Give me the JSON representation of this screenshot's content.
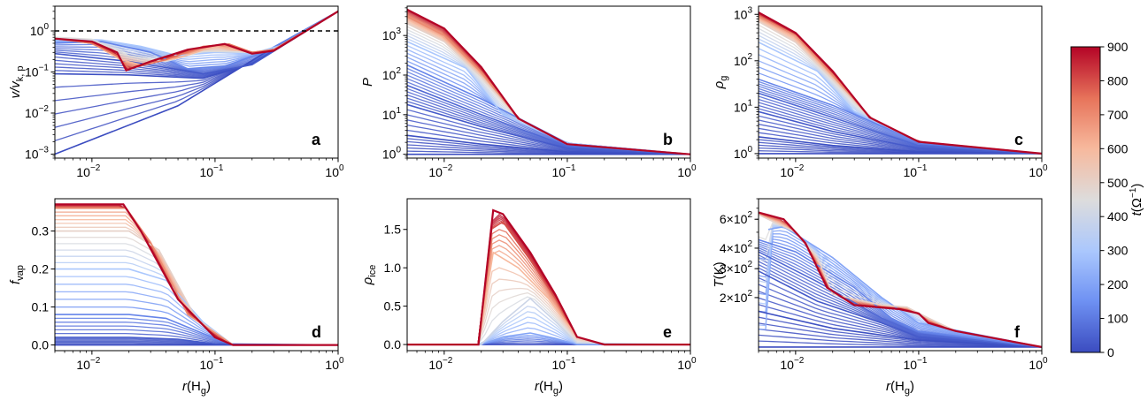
{
  "colorbar": {
    "label_t": "t",
    "label_unit": "(Ω",
    "label_exp": "−1",
    "label_close": ")",
    "range": [
      0,
      900
    ],
    "ticks": [
      "0",
      "100",
      "200",
      "300",
      "400",
      "500",
      "600",
      "700",
      "800",
      "900"
    ],
    "colormap": "coolwarm",
    "cmap_stops": [
      "#3b4cc0",
      "#6f92f3",
      "#aac7fd",
      "#dddcdc",
      "#f7b89c",
      "#e7745b",
      "#b40426"
    ]
  },
  "shared_x": {
    "label_main": "r",
    "label_paren": "(H",
    "label_sub": "g",
    "label_close": ")",
    "scale": "log",
    "range": [
      0.005,
      1
    ],
    "ticks": [
      {
        "value": 0.01,
        "base": "10",
        "exp": "−2"
      },
      {
        "value": 0.1,
        "base": "10",
        "exp": "−1"
      },
      {
        "value": 1,
        "base": "10",
        "exp": "0"
      }
    ]
  },
  "chart_data": [
    {
      "panel": "a",
      "type": "line",
      "yscale": "log",
      "ylim": [
        0.0008,
        4
      ],
      "ylabel_main": "v/v",
      "ylabel_sub": "k, p",
      "yticks": [
        {
          "value": 0.001,
          "base": "10",
          "exp": "−3"
        },
        {
          "value": 0.01,
          "base": "10",
          "exp": "−2"
        },
        {
          "value": 0.1,
          "base": "10",
          "exp": "−1"
        },
        {
          "value": 1,
          "base": "10",
          "exp": "0"
        }
      ],
      "reference_line": {
        "y": 1.0,
        "style": "dashed",
        "color": "#000000"
      },
      "series": [
        {
          "t": 0,
          "x": [
            0.005,
            0.05,
            0.3,
            1
          ],
          "y": [
            0.001,
            0.015,
            0.4,
            3
          ]
        },
        {
          "t": 10,
          "x": [
            0.005,
            0.02,
            0.08,
            0.2,
            1
          ],
          "y": [
            0.09,
            0.085,
            0.07,
            0.16,
            3
          ]
        },
        {
          "t": 30,
          "x": [
            0.005,
            0.02,
            0.08,
            0.2,
            1
          ],
          "y": [
            0.28,
            0.18,
            0.09,
            0.15,
            3
          ]
        },
        {
          "t": 120,
          "x": [
            0.005,
            0.012,
            0.03,
            0.06,
            0.12,
            0.25,
            1
          ],
          "y": [
            0.5,
            0.55,
            0.3,
            0.12,
            0.14,
            0.3,
            3
          ]
        },
        {
          "t": 300,
          "x": [
            0.005,
            0.012,
            0.025,
            0.05,
            0.1,
            0.2,
            0.35,
            1
          ],
          "y": [
            0.65,
            0.6,
            0.42,
            0.25,
            0.3,
            0.28,
            0.45,
            3
          ]
        },
        {
          "t": 450,
          "x": [
            0.005,
            0.01,
            0.02,
            0.04,
            0.08,
            0.2,
            0.3,
            1
          ],
          "y": [
            0.7,
            0.62,
            0.25,
            0.18,
            0.32,
            0.3,
            0.35,
            3
          ]
        },
        {
          "t": 600,
          "x": [
            0.005,
            0.01,
            0.017,
            0.025,
            0.05,
            0.1,
            0.2,
            0.3,
            1
          ],
          "y": [
            0.65,
            0.5,
            0.2,
            0.15,
            0.22,
            0.42,
            0.3,
            0.35,
            3
          ]
        },
        {
          "t": 750,
          "x": [
            0.005,
            0.01,
            0.016,
            0.02,
            0.04,
            0.08,
            0.13,
            0.2,
            0.3,
            1
          ],
          "y": [
            0.65,
            0.5,
            0.25,
            0.12,
            0.2,
            0.42,
            0.48,
            0.3,
            0.35,
            3
          ]
        },
        {
          "t": 900,
          "x": [
            0.005,
            0.01,
            0.016,
            0.019,
            0.03,
            0.06,
            0.12,
            0.2,
            0.3,
            1
          ],
          "y": [
            0.65,
            0.55,
            0.3,
            0.11,
            0.18,
            0.35,
            0.48,
            0.28,
            0.33,
            3
          ]
        }
      ]
    },
    {
      "panel": "b",
      "type": "line",
      "yscale": "log",
      "ylim": [
        0.8,
        5500
      ],
      "ylabel_main": "P",
      "ylabel_sub": "",
      "yticks": [
        {
          "value": 1,
          "base": "10",
          "exp": "0"
        },
        {
          "value": 10,
          "base": "10",
          "exp": "1"
        },
        {
          "value": 100,
          "base": "10",
          "exp": "2"
        },
        {
          "value": 1000,
          "base": "10",
          "exp": "3"
        }
      ],
      "series": [
        {
          "t": 0,
          "x": [
            0.005,
            1
          ],
          "y": [
            1,
            1
          ]
        },
        {
          "t": 10,
          "x": [
            0.005,
            0.02,
            0.1,
            1
          ],
          "y": [
            3,
            1.8,
            1.15,
            1
          ]
        },
        {
          "t": 30,
          "x": [
            0.005,
            0.02,
            0.1,
            1
          ],
          "y": [
            18,
            5,
            1.4,
            1
          ]
        },
        {
          "t": 60,
          "x": [
            0.005,
            0.02,
            0.1,
            1
          ],
          "y": [
            55,
            10,
            1.6,
            1
          ]
        },
        {
          "t": 120,
          "x": [
            0.005,
            0.02,
            0.1,
            1
          ],
          "y": [
            180,
            25,
            1.9,
            1
          ]
        },
        {
          "t": 300,
          "x": [
            0.005,
            0.015,
            0.03,
            0.1,
            1
          ],
          "y": [
            700,
            150,
            10,
            1.9,
            1
          ]
        },
        {
          "t": 500,
          "x": [
            0.005,
            0.01,
            0.02,
            0.04,
            0.1,
            1
          ],
          "y": [
            2000,
            700,
            90,
            8,
            1.8,
            1
          ]
        },
        {
          "t": 700,
          "x": [
            0.005,
            0.01,
            0.02,
            0.04,
            0.1,
            1
          ],
          "y": [
            3000,
            1000,
            120,
            8,
            1.8,
            1
          ]
        },
        {
          "t": 900,
          "x": [
            0.005,
            0.01,
            0.02,
            0.04,
            0.1,
            1
          ],
          "y": [
            4500,
            1500,
            160,
            8,
            1.8,
            1
          ]
        }
      ]
    },
    {
      "panel": "c",
      "type": "line",
      "yscale": "log",
      "ylim": [
        0.8,
        1500
      ],
      "ylabel_main": "ρ",
      "ylabel_sub": "g",
      "yticks": [
        {
          "value": 1,
          "base": "10",
          "exp": "0"
        },
        {
          "value": 10,
          "base": "10",
          "exp": "1"
        },
        {
          "value": 100,
          "base": "10",
          "exp": "2"
        },
        {
          "value": 1000,
          "base": "10",
          "exp": "3"
        }
      ],
      "series": [
        {
          "t": 0,
          "x": [
            0.005,
            1
          ],
          "y": [
            1,
            1
          ]
        },
        {
          "t": 10,
          "x": [
            0.005,
            0.02,
            0.1,
            1
          ],
          "y": [
            2.3,
            1.5,
            1.1,
            1
          ]
        },
        {
          "t": 30,
          "x": [
            0.005,
            0.02,
            0.1,
            1
          ],
          "y": [
            8,
            3,
            1.3,
            1
          ]
        },
        {
          "t": 60,
          "x": [
            0.005,
            0.02,
            0.1,
            1
          ],
          "y": [
            20,
            6,
            1.5,
            1
          ]
        },
        {
          "t": 120,
          "x": [
            0.005,
            0.02,
            0.1,
            1
          ],
          "y": [
            40,
            11,
            1.8,
            1
          ]
        },
        {
          "t": 300,
          "x": [
            0.005,
            0.015,
            0.03,
            0.1,
            1
          ],
          "y": [
            250,
            60,
            8,
            1.8,
            1
          ]
        },
        {
          "t": 500,
          "x": [
            0.005,
            0.01,
            0.02,
            0.04,
            0.1,
            1
          ],
          "y": [
            700,
            250,
            40,
            6,
            1.8,
            1
          ]
        },
        {
          "t": 700,
          "x": [
            0.005,
            0.01,
            0.02,
            0.04,
            0.1,
            1
          ],
          "y": [
            900,
            350,
            50,
            6,
            1.8,
            1
          ]
        },
        {
          "t": 900,
          "x": [
            0.005,
            0.01,
            0.02,
            0.04,
            0.1,
            1
          ],
          "y": [
            1100,
            400,
            60,
            6,
            1.8,
            1
          ]
        }
      ]
    },
    {
      "panel": "d",
      "type": "line",
      "yscale": "linear",
      "ylim": [
        -0.015,
        0.385
      ],
      "ylabel_main": "f",
      "ylabel_sub": "vap",
      "yticks": [
        {
          "value": 0.0,
          "label": "0.0"
        },
        {
          "value": 0.1,
          "label": "0.1"
        },
        {
          "value": 0.2,
          "label": "0.2"
        },
        {
          "value": 0.3,
          "label": "0.3"
        }
      ],
      "series": [
        {
          "t": 0,
          "x": [
            0.005,
            1
          ],
          "y": [
            0,
            0
          ]
        },
        {
          "t": 30,
          "x": [
            0.005,
            0.02,
            0.05,
            0.1,
            1
          ],
          "y": [
            0.02,
            0.02,
            0.015,
            0.003,
            0
          ]
        },
        {
          "t": 120,
          "x": [
            0.005,
            0.02,
            0.04,
            0.08,
            0.14,
            1
          ],
          "y": [
            0.08,
            0.08,
            0.07,
            0.03,
            0,
            0
          ]
        },
        {
          "t": 300,
          "x": [
            0.005,
            0.02,
            0.04,
            0.08,
            0.14,
            1
          ],
          "y": [
            0.2,
            0.2,
            0.17,
            0.06,
            0,
            0
          ]
        },
        {
          "t": 500,
          "x": [
            0.005,
            0.02,
            0.035,
            0.07,
            0.14,
            1
          ],
          "y": [
            0.3,
            0.3,
            0.25,
            0.07,
            0,
            0
          ]
        },
        {
          "t": 700,
          "x": [
            0.005,
            0.019,
            0.03,
            0.06,
            0.14,
            1
          ],
          "y": [
            0.36,
            0.36,
            0.27,
            0.08,
            0,
            0
          ]
        },
        {
          "t": 900,
          "x": [
            0.005,
            0.018,
            0.025,
            0.05,
            0.1,
            0.14,
            1
          ],
          "y": [
            0.37,
            0.37,
            0.3,
            0.12,
            0.02,
            0,
            0
          ]
        }
      ]
    },
    {
      "panel": "e",
      "type": "line",
      "yscale": "linear",
      "ylim": [
        -0.08,
        1.9
      ],
      "ylabel_main": "ρ",
      "ylabel_sub": "ice",
      "yticks": [
        {
          "value": 0.0,
          "label": "0.0"
        },
        {
          "value": 0.5,
          "label": "0.5"
        },
        {
          "value": 1.0,
          "label": "1.0"
        },
        {
          "value": 1.5,
          "label": "1.5"
        }
      ],
      "series": [
        {
          "t": 0,
          "x": [
            0.005,
            1
          ],
          "y": [
            0,
            0
          ]
        },
        {
          "t": 200,
          "x": [
            0.005,
            0.02,
            0.03,
            0.05,
            0.08,
            0.12,
            1
          ],
          "y": [
            0,
            0,
            0.1,
            0.15,
            0.08,
            0,
            0
          ]
        },
        {
          "t": 400,
          "x": [
            0.005,
            0.02,
            0.03,
            0.05,
            0.08,
            0.12,
            1
          ],
          "y": [
            0,
            0,
            0.3,
            0.6,
            0.3,
            0.02,
            0
          ]
        },
        {
          "t": 600,
          "x": [
            0.005,
            0.019,
            0.025,
            0.04,
            0.07,
            0.12,
            0.2,
            1
          ],
          "y": [
            0,
            0,
            1.2,
            1.0,
            0.6,
            0.1,
            0,
            0
          ]
        },
        {
          "t": 800,
          "x": [
            0.005,
            0.019,
            0.024,
            0.03,
            0.05,
            0.08,
            0.12,
            0.2,
            1
          ],
          "y": [
            0,
            0,
            1.5,
            1.6,
            1.1,
            0.6,
            0.1,
            0,
            0
          ]
        },
        {
          "t": 900,
          "x": [
            0.005,
            0.019,
            0.025,
            0.03,
            0.05,
            0.08,
            0.12,
            0.2,
            1
          ],
          "y": [
            0,
            0,
            1.75,
            1.7,
            1.2,
            0.65,
            0.1,
            0,
            0
          ]
        }
      ]
    },
    {
      "panel": "f",
      "type": "line",
      "yscale": "log",
      "ylim": [
        95,
        800
      ],
      "ylabel_main": "T",
      "ylabel_sub": "",
      "ylabel_unit": "(K)",
      "yticks": [
        {
          "value": 200,
          "mant": "2×10",
          "exp": "2"
        },
        {
          "value": 300,
          "mant": "3×10",
          "exp": "2"
        },
        {
          "value": 400,
          "mant": "4×10",
          "exp": "2"
        },
        {
          "value": 600,
          "mant": "6×10",
          "exp": "2"
        }
      ],
      "series": [
        {
          "t": 0,
          "x": [
            0.005,
            1
          ],
          "y": [
            100,
            100
          ]
        },
        {
          "t": 10,
          "x": [
            0.005,
            0.02,
            0.1,
            1
          ],
          "y": [
            165,
            130,
            110,
            100
          ]
        },
        {
          "t": 30,
          "x": [
            0.005,
            0.015,
            0.05,
            0.1,
            1
          ],
          "y": [
            290,
            190,
            140,
            115,
            100
          ]
        },
        {
          "t": 60,
          "x": [
            0.005,
            0.015,
            0.05,
            0.1,
            1
          ],
          "y": [
            380,
            250,
            150,
            120,
            100
          ]
        },
        {
          "t": 120,
          "x": [
            0.005,
            0.01,
            0.03,
            0.06,
            0.1,
            1
          ],
          "y": [
            450,
            380,
            230,
            150,
            125,
            100
          ]
        },
        {
          "t": 200,
          "x": [
            0.006,
            0.008,
            0.02,
            0.05,
            0.1,
            1
          ],
          "y": [
            520,
            540,
            350,
            200,
            140,
            100
          ]
        },
        {
          "t": 500,
          "x": [
            0.005,
            0.01,
            0.015,
            0.02,
            0.05,
            0.08,
            0.12,
            0.2,
            1
          ],
          "y": [
            640,
            500,
            350,
            210,
            180,
            175,
            150,
            125,
            100
          ]
        },
        {
          "t": 900,
          "x": [
            0.005,
            0.008,
            0.012,
            0.018,
            0.03,
            0.07,
            0.1,
            0.12,
            0.2,
            1
          ],
          "y": [
            660,
            600,
            430,
            230,
            180,
            170,
            160,
            140,
            125,
            100
          ]
        }
      ]
    }
  ]
}
